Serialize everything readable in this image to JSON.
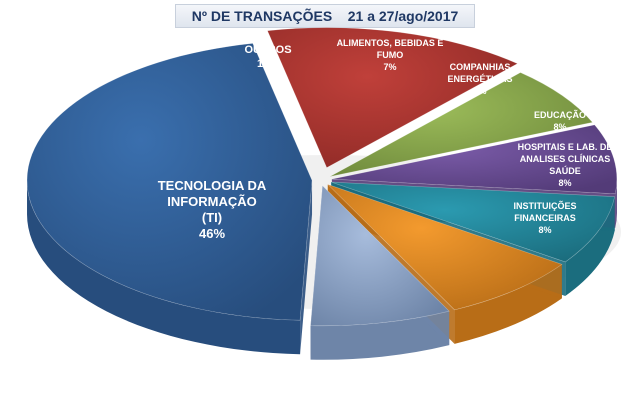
{
  "chart_data": {
    "type": "pie",
    "title_main": "Nº DE TRANSAÇÕES",
    "title_period": "21 a 27/ago/2017",
    "slices": [
      {
        "lines": [
          "OUTROS"
        ],
        "pct_label": "15%",
        "value": 15,
        "color": "#c0403a",
        "side": "#8e2a26"
      },
      {
        "lines": [
          "ALIMENTOS, BEBIDAS E",
          "FUMO"
        ],
        "pct_label": "7%",
        "value": 7,
        "color": "#9bbb59",
        "side": "#6f8a3c"
      },
      {
        "lines": [
          "COMPANHIAS",
          "ENERGÉTICAS"
        ],
        "pct_label": "8%",
        "value": 8,
        "color": "#7a5ba8",
        "side": "#533b78"
      },
      {
        "lines": [
          "EDUCAÇÃO"
        ],
        "pct_label": "8%",
        "value": 8,
        "color": "#2b9ab0",
        "side": "#1b6d7e"
      },
      {
        "lines": [
          "HOSPITAIS E LAB. DE",
          "ANALISES CLÍNICAS",
          "SAÚDE"
        ],
        "pct_label": "8%",
        "value": 8,
        "color": "#f39a2e",
        "side": "#b86d17"
      },
      {
        "lines": [
          "INSTITUIÇÕES",
          "FINANCEIRAS"
        ],
        "pct_label": "8%",
        "value": 8,
        "color": "#a7bcdc",
        "side": "#6e85a8"
      },
      {
        "lines": [
          "TECNOLOGIA DA",
          "INFORMAÇÃO",
          "(TI)"
        ],
        "pct_label": "46%",
        "value": 46,
        "color": "#3a6fae",
        "side": "#274d7d"
      }
    ],
    "legend": "none"
  }
}
